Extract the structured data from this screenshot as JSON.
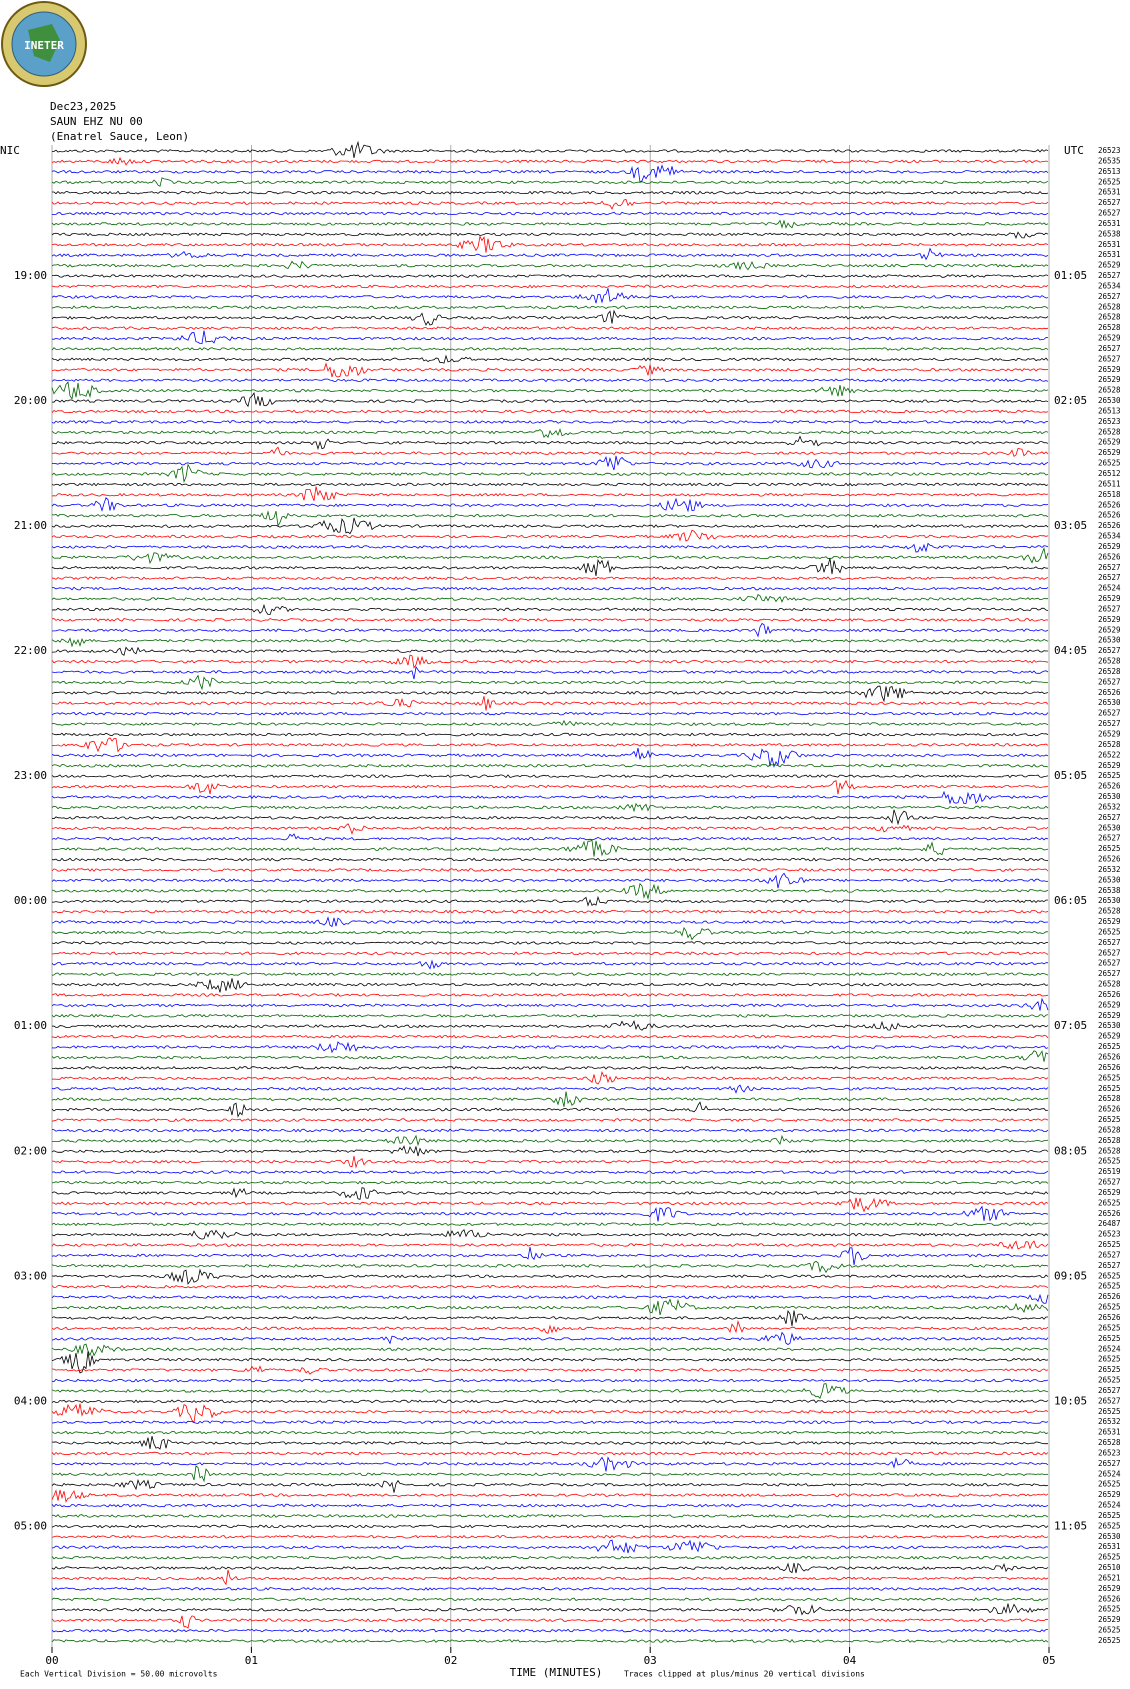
{
  "chart_data": {
    "type": "helicorder",
    "logo": "INETER",
    "date": "Dec23,2025",
    "station": "SAUN EHZ NU 00",
    "location": "(Enatrel Sauce, Leon)",
    "left_zone": "NIC",
    "right_zone": "UTC",
    "left_labels": [
      "19:00",
      "20:00",
      "21:00",
      "22:00",
      "23:00",
      "00:00",
      "01:00",
      "02:00",
      "03:00",
      "04:00",
      "05:00"
    ],
    "right_labels": [
      "01:05",
      "02:05",
      "03:05",
      "04:05",
      "05:05",
      "06:05",
      "07:05",
      "08:05",
      "09:05",
      "10:05",
      "11:05"
    ],
    "xlabel": "TIME (MINUTES)",
    "xlim": [
      0,
      5
    ],
    "xticks": [
      {
        "value": 0,
        "label": "00"
      },
      {
        "value": 1,
        "label": "01"
      },
      {
        "value": 2,
        "label": "02"
      },
      {
        "value": 3,
        "label": "03"
      },
      {
        "value": 4,
        "label": "04"
      },
      {
        "value": 5,
        "label": "05"
      }
    ],
    "scale_note": "Each Vertical Division =   50.00 microvolts",
    "clip_note": "Traces clipped at plus/minus 20 vertical divisions",
    "trace_colors": [
      "#000000",
      "#ff0000",
      "#0000ff",
      "#006400"
    ],
    "trace_counts": [
      26523,
      26535,
      26513,
      26525,
      26531,
      26527,
      26527,
      26531,
      26538,
      26531,
      26531,
      26529,
      26527,
      26534,
      26527,
      26528,
      26528,
      26528,
      26529,
      26527,
      26527,
      26529,
      26529,
      26528,
      26530,
      26513,
      26523,
      26528,
      26529,
      26529,
      26525,
      26512,
      26511,
      26518,
      26526,
      26526,
      26526,
      26534,
      26529,
      26526,
      26527,
      26527,
      26524,
      26529,
      26527,
      26529,
      26529,
      26530,
      26527,
      26528,
      26528,
      26527,
      26526,
      26530,
      26527,
      26527,
      26529,
      26528,
      26522,
      26529,
      26525,
      26526,
      26530,
      26532,
      26527,
      26530,
      26527,
      26525,
      26526,
      26532,
      26530,
      26538,
      26530,
      26528,
      26529,
      26525,
      26527,
      26527,
      26527,
      26527,
      26528,
      26526,
      26529,
      26529,
      26530,
      26529,
      26525,
      26526,
      26526,
      26525,
      26525,
      26528,
      26526,
      26525,
      26528,
      26528,
      26528,
      26525,
      26519,
      26527,
      26529,
      26525,
      26526,
      26487,
      26523,
      26525,
      26527,
      26527,
      26525,
      26525,
      26526,
      26525,
      26526,
      26525,
      26525,
      26524,
      26525,
      26525,
      26525,
      26527,
      26527,
      26525,
      26532,
      26531,
      26528,
      26523,
      26527,
      26524,
      26525,
      26529,
      26524,
      26525,
      26525,
      26530,
      26531,
      26525,
      26510,
      26521,
      26529,
      26526,
      26525,
      26529,
      26525,
      26525
    ]
  }
}
